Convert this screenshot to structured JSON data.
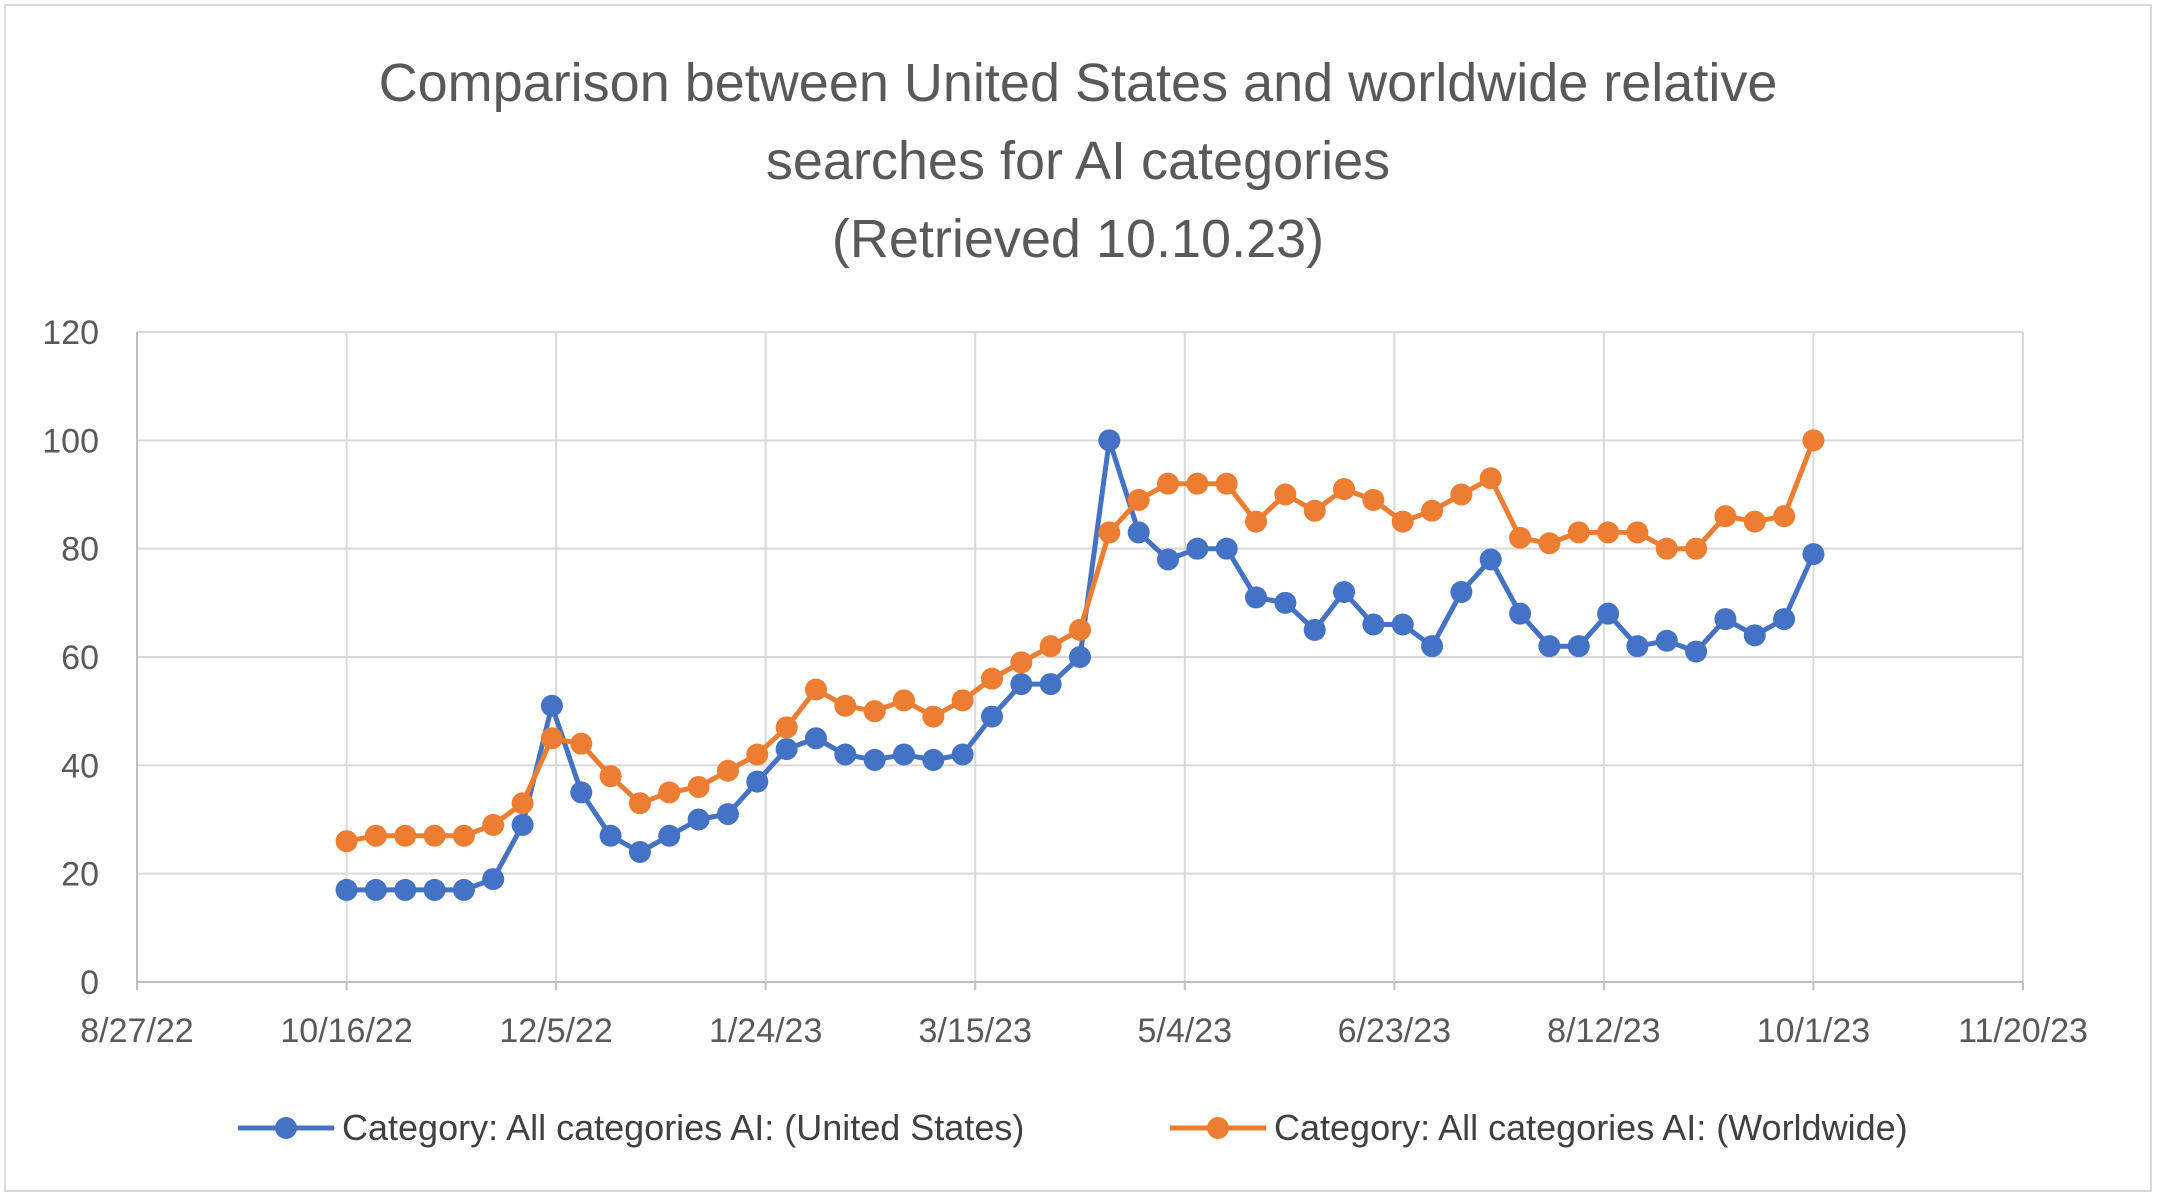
{
  "chart_data": {
    "type": "line",
    "title_lines": [
      "Comparison between United States and worldwide relative",
      "searches for AI categories",
      "(Retrieved 10.10.23)"
    ],
    "xlabel": "",
    "ylabel": "",
    "x_axis": {
      "type": "date",
      "range": [
        "2022-08-27",
        "2023-11-20"
      ],
      "tick_dates": [
        "2022-08-27",
        "2022-10-16",
        "2022-12-05",
        "2023-01-24",
        "2023-03-15",
        "2023-05-04",
        "2023-06-23",
        "2023-08-12",
        "2023-10-01",
        "2023-11-20"
      ],
      "tick_labels": [
        "8/27/22",
        "10/16/22",
        "12/5/22",
        "1/24/23",
        "3/15/23",
        "5/4/23",
        "6/23/23",
        "8/12/23",
        "10/1/23",
        "11/20/23"
      ]
    },
    "y_axis": {
      "range": [
        0,
        120
      ],
      "ticks": [
        0,
        20,
        40,
        60,
        80,
        100,
        120
      ],
      "tick_labels": [
        "0",
        "20",
        "40",
        "60",
        "80",
        "100",
        "120"
      ]
    },
    "grid": true,
    "legend_position": "bottom",
    "x": [
      "2022-10-16",
      "2022-10-23",
      "2022-10-30",
      "2022-11-06",
      "2022-11-13",
      "2022-11-20",
      "2022-11-27",
      "2022-12-04",
      "2022-12-11",
      "2022-12-18",
      "2022-12-25",
      "2023-01-01",
      "2023-01-08",
      "2023-01-15",
      "2023-01-22",
      "2023-01-29",
      "2023-02-05",
      "2023-02-12",
      "2023-02-19",
      "2023-02-26",
      "2023-03-05",
      "2023-03-12",
      "2023-03-19",
      "2023-03-26",
      "2023-04-02",
      "2023-04-09",
      "2023-04-16",
      "2023-04-23",
      "2023-04-30",
      "2023-05-07",
      "2023-05-14",
      "2023-05-21",
      "2023-05-28",
      "2023-06-04",
      "2023-06-11",
      "2023-06-18",
      "2023-06-25",
      "2023-07-02",
      "2023-07-09",
      "2023-07-16",
      "2023-07-23",
      "2023-07-30",
      "2023-08-06",
      "2023-08-13",
      "2023-08-20",
      "2023-08-27",
      "2023-09-03",
      "2023-09-10",
      "2023-09-17",
      "2023-09-24",
      "2023-10-01"
    ],
    "series": [
      {
        "name": "Category: All categories AI: (United States)",
        "color": "#4472c4",
        "values": [
          17,
          17,
          17,
          17,
          17,
          19,
          29,
          51,
          35,
          27,
          24,
          27,
          30,
          31,
          37,
          43,
          45,
          42,
          41,
          42,
          41,
          42,
          49,
          55,
          55,
          60,
          100,
          83,
          78,
          80,
          80,
          71,
          70,
          65,
          72,
          66,
          66,
          62,
          72,
          78,
          68,
          62,
          62,
          68,
          62,
          63,
          61,
          67,
          64,
          67,
          79
        ]
      },
      {
        "name": "Category: All categories AI: (Worldwide)",
        "color": "#ed7d31",
        "values": [
          26,
          27,
          27,
          27,
          27,
          29,
          33,
          45,
          44,
          38,
          33,
          35,
          36,
          39,
          42,
          47,
          54,
          51,
          50,
          52,
          49,
          52,
          56,
          59,
          62,
          65,
          83,
          89,
          92,
          92,
          92,
          85,
          90,
          87,
          91,
          89,
          85,
          87,
          90,
          93,
          82,
          81,
          83,
          83,
          83,
          80,
          80,
          86,
          85,
          86,
          100
        ]
      }
    ]
  }
}
